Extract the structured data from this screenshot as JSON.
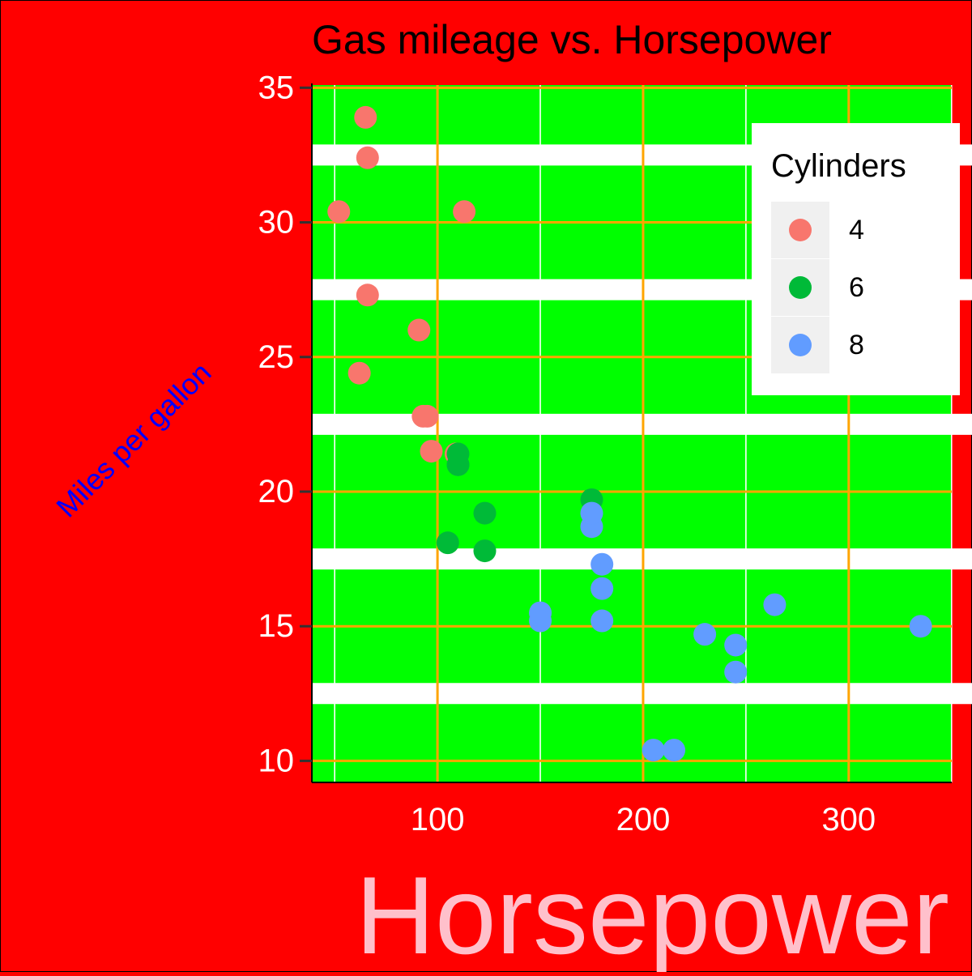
{
  "chart_data": {
    "type": "scatter",
    "title": "Gas mileage vs. Horsepower",
    "xlabel": "Horsepower",
    "ylabel": "Miles per gallon",
    "xlim": [
      38.9,
      350.1
    ],
    "ylim": [
      9.2,
      35.1
    ],
    "x_ticks": [
      100,
      200,
      300
    ],
    "y_ticks": [
      10,
      15,
      20,
      25,
      30,
      35
    ],
    "grid": true,
    "legend": {
      "title": "Cylinders",
      "position": "top-right",
      "entries": [
        "4",
        "6",
        "8"
      ]
    },
    "colors": {
      "background": "#ff0000",
      "panel": "#00ff00",
      "major_grid": "#ffa500",
      "minor_grid": "#ffffff",
      "y_band": "#ffffff",
      "title": "#000000",
      "tick_labels": "#ffffff",
      "xlabel": "#ffc0cb",
      "ylabel": "#0000ff"
    },
    "series": [
      {
        "name": "4",
        "color": "#f8766d",
        "points": [
          [
            93,
            22.8
          ],
          [
            62,
            24.4
          ],
          [
            95,
            22.8
          ],
          [
            66,
            32.4
          ],
          [
            52,
            30.4
          ],
          [
            65,
            33.9
          ],
          [
            97,
            21.5
          ],
          [
            66,
            27.3
          ],
          [
            91,
            26.0
          ],
          [
            113,
            30.4
          ],
          [
            109,
            21.4
          ]
        ]
      },
      {
        "name": "6",
        "color": "#00ba38",
        "points": [
          [
            110,
            21.0
          ],
          [
            110,
            21.0
          ],
          [
            110,
            21.4
          ],
          [
            105,
            18.1
          ],
          [
            123,
            19.2
          ],
          [
            123,
            17.8
          ],
          [
            175,
            19.7
          ]
        ]
      },
      {
        "name": "8",
        "color": "#619cff",
        "points": [
          [
            175,
            18.7
          ],
          [
            245,
            14.3
          ],
          [
            180,
            16.4
          ],
          [
            180,
            17.3
          ],
          [
            180,
            15.2
          ],
          [
            205,
            10.4
          ],
          [
            215,
            10.4
          ],
          [
            230,
            14.7
          ],
          [
            150,
            15.5
          ],
          [
            150,
            15.2
          ],
          [
            245,
            13.3
          ],
          [
            175,
            19.2
          ],
          [
            264,
            15.8
          ],
          [
            335,
            15.0
          ]
        ]
      }
    ]
  }
}
